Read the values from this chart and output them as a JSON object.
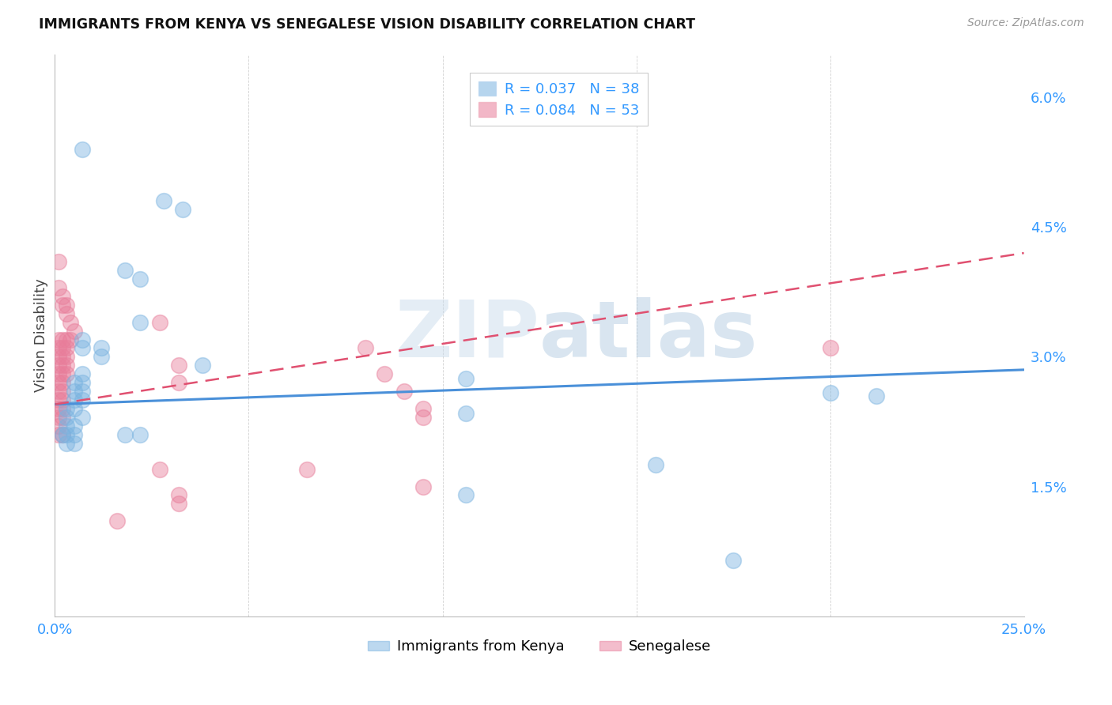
{
  "title": "IMMIGRANTS FROM KENYA VS SENEGALESE VISION DISABILITY CORRELATION CHART",
  "source": "Source: ZipAtlas.com",
  "ylabel": "Vision Disability",
  "xlim": [
    0.0,
    0.25
  ],
  "ylim": [
    0.0,
    0.065
  ],
  "xticks": [
    0.0,
    0.05,
    0.1,
    0.15,
    0.2,
    0.25
  ],
  "yticks": [
    0.0,
    0.015,
    0.03,
    0.045,
    0.06
  ],
  "ytick_labels": [
    "",
    "1.5%",
    "3.0%",
    "4.5%",
    "6.0%"
  ],
  "xtick_labels": [
    "0.0%",
    "",
    "",
    "",
    "",
    "25.0%"
  ],
  "watermark": "ZIPatlas",
  "kenya_color": "#7ab3e0",
  "senegal_color": "#e87d9a",
  "kenya_line_color": "#4a90d9",
  "senegal_line_color": "#e05070",
  "kenya_line": {
    "x0": 0.0,
    "y0": 0.0245,
    "x1": 0.25,
    "y1": 0.0285
  },
  "senegal_line": {
    "x0": 0.0,
    "y0": 0.0245,
    "x1": 0.25,
    "y1": 0.042
  },
  "kenya_points": [
    [
      0.007,
      0.054
    ],
    [
      0.028,
      0.048
    ],
    [
      0.033,
      0.047
    ],
    [
      0.018,
      0.04
    ],
    [
      0.022,
      0.039
    ],
    [
      0.022,
      0.034
    ],
    [
      0.007,
      0.032
    ],
    [
      0.007,
      0.031
    ],
    [
      0.012,
      0.031
    ],
    [
      0.012,
      0.03
    ],
    [
      0.038,
      0.029
    ],
    [
      0.007,
      0.028
    ],
    [
      0.005,
      0.027
    ],
    [
      0.007,
      0.027
    ],
    [
      0.005,
      0.026
    ],
    [
      0.007,
      0.026
    ],
    [
      0.005,
      0.025
    ],
    [
      0.007,
      0.025
    ],
    [
      0.003,
      0.024
    ],
    [
      0.005,
      0.024
    ],
    [
      0.003,
      0.023
    ],
    [
      0.007,
      0.023
    ],
    [
      0.003,
      0.022
    ],
    [
      0.005,
      0.022
    ],
    [
      0.003,
      0.021
    ],
    [
      0.005,
      0.021
    ],
    [
      0.002,
      0.021
    ],
    [
      0.005,
      0.02
    ],
    [
      0.003,
      0.02
    ],
    [
      0.018,
      0.021
    ],
    [
      0.022,
      0.021
    ],
    [
      0.106,
      0.0275
    ],
    [
      0.106,
      0.0235
    ],
    [
      0.2,
      0.0258
    ],
    [
      0.212,
      0.0255
    ],
    [
      0.106,
      0.014
    ],
    [
      0.155,
      0.0175
    ],
    [
      0.175,
      0.0065
    ]
  ],
  "senegal_points": [
    [
      0.001,
      0.041
    ],
    [
      0.001,
      0.038
    ],
    [
      0.002,
      0.037
    ],
    [
      0.002,
      0.036
    ],
    [
      0.003,
      0.036
    ],
    [
      0.003,
      0.035
    ],
    [
      0.004,
      0.034
    ],
    [
      0.005,
      0.033
    ],
    [
      0.001,
      0.032
    ],
    [
      0.002,
      0.032
    ],
    [
      0.003,
      0.032
    ],
    [
      0.004,
      0.032
    ],
    [
      0.001,
      0.031
    ],
    [
      0.002,
      0.031
    ],
    [
      0.003,
      0.031
    ],
    [
      0.001,
      0.03
    ],
    [
      0.002,
      0.03
    ],
    [
      0.003,
      0.03
    ],
    [
      0.001,
      0.029
    ],
    [
      0.002,
      0.029
    ],
    [
      0.003,
      0.029
    ],
    [
      0.001,
      0.028
    ],
    [
      0.002,
      0.028
    ],
    [
      0.003,
      0.028
    ],
    [
      0.001,
      0.027
    ],
    [
      0.002,
      0.027
    ],
    [
      0.001,
      0.026
    ],
    [
      0.002,
      0.026
    ],
    [
      0.001,
      0.025
    ],
    [
      0.002,
      0.025
    ],
    [
      0.001,
      0.024
    ],
    [
      0.002,
      0.024
    ],
    [
      0.001,
      0.023
    ],
    [
      0.002,
      0.023
    ],
    [
      0.001,
      0.022
    ],
    [
      0.001,
      0.021
    ],
    [
      0.002,
      0.021
    ],
    [
      0.027,
      0.034
    ],
    [
      0.032,
      0.029
    ],
    [
      0.032,
      0.027
    ],
    [
      0.027,
      0.017
    ],
    [
      0.032,
      0.014
    ],
    [
      0.032,
      0.013
    ],
    [
      0.08,
      0.031
    ],
    [
      0.085,
      0.028
    ],
    [
      0.09,
      0.026
    ],
    [
      0.095,
      0.024
    ],
    [
      0.095,
      0.023
    ],
    [
      0.095,
      0.015
    ],
    [
      0.016,
      0.011
    ],
    [
      0.065,
      0.017
    ],
    [
      0.2,
      0.031
    ]
  ]
}
